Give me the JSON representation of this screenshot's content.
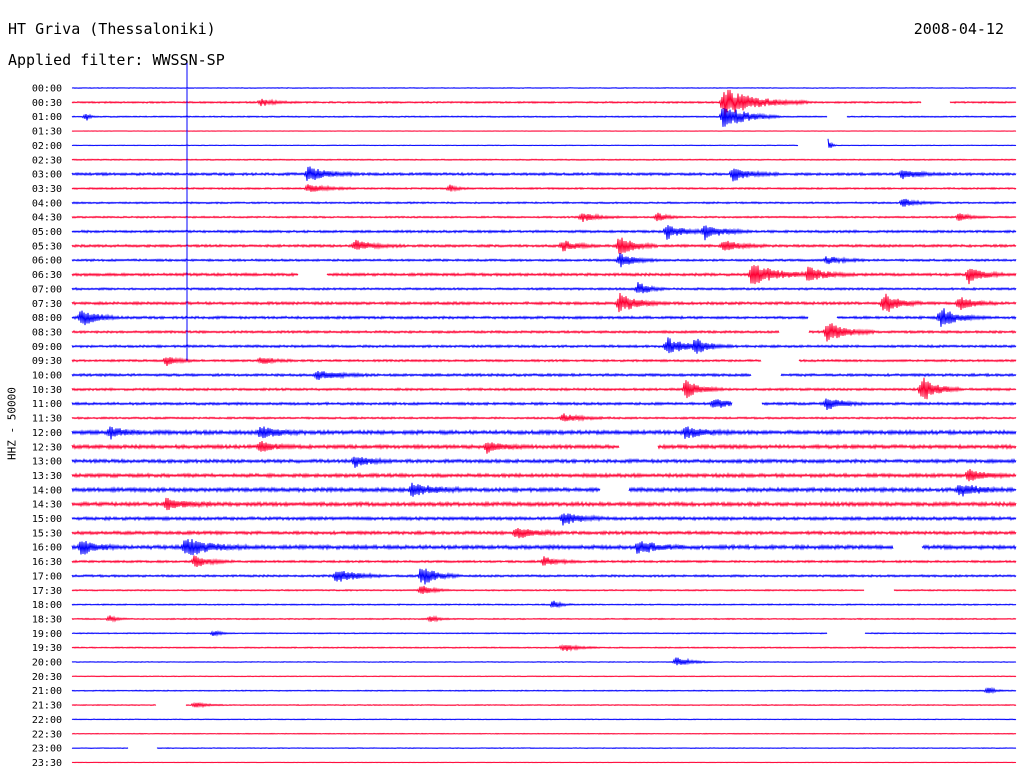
{
  "header": {
    "station": "HT Griva (Thessaloniki)",
    "date": "2008-04-12",
    "filter": "Applied filter: WWSSN-SP"
  },
  "chart_data": {
    "type": "helicorder",
    "ylabel": "HHZ - 50000",
    "colors": [
      "#0000ff",
      "#ff0033"
    ],
    "rows": [
      {
        "label": "00:00",
        "color": "#0000ff",
        "noise": 0.4,
        "events": [],
        "gaps": []
      },
      {
        "label": "00:30",
        "color": "#ff0033",
        "noise": 0.8,
        "events": [
          {
            "x": 0.69,
            "amp": 2.6,
            "dur": 0.09
          },
          {
            "x": 0.2,
            "amp": 0.6,
            "dur": 0.04
          }
        ],
        "gaps": [
          [
            0.9,
            0.93
          ]
        ]
      },
      {
        "label": "01:00",
        "color": "#0000ff",
        "noise": 0.6,
        "events": [
          {
            "x": 0.69,
            "amp": 2.3,
            "dur": 0.06
          },
          {
            "x": 0.015,
            "amp": 0.8,
            "dur": 0.01
          }
        ],
        "gaps": [
          [
            0.8,
            0.82
          ]
        ]
      },
      {
        "label": "01:30",
        "color": "#ff0033",
        "noise": 0.3,
        "events": [],
        "gaps": []
      },
      {
        "label": "02:00",
        "color": "#0000ff",
        "noise": 0.3,
        "events": [
          {
            "x": 0.8,
            "amp": 1.4,
            "dur": 0.01
          }
        ],
        "gaps": [
          [
            0.77,
            0.8
          ]
        ]
      },
      {
        "label": "02:30",
        "color": "#ff0033",
        "noise": 0.6,
        "events": [],
        "gaps": []
      },
      {
        "label": "03:00",
        "color": "#0000ff",
        "noise": 1.2,
        "events": [
          {
            "x": 0.25,
            "amp": 1.5,
            "dur": 0.05
          },
          {
            "x": 0.7,
            "amp": 1.3,
            "dur": 0.05
          },
          {
            "x": 0.88,
            "amp": 0.8,
            "dur": 0.05
          }
        ],
        "gaps": []
      },
      {
        "label": "03:30",
        "color": "#ff0033",
        "noise": 0.8,
        "events": [
          {
            "x": 0.25,
            "amp": 0.8,
            "dur": 0.05
          },
          {
            "x": 0.4,
            "amp": 0.6,
            "dur": 0.02
          }
        ],
        "gaps": []
      },
      {
        "label": "04:00",
        "color": "#0000ff",
        "noise": 0.8,
        "events": [
          {
            "x": 0.88,
            "amp": 0.7,
            "dur": 0.04
          }
        ],
        "gaps": []
      },
      {
        "label": "04:30",
        "color": "#ff0033",
        "noise": 0.8,
        "events": [
          {
            "x": 0.54,
            "amp": 0.9,
            "dur": 0.04
          },
          {
            "x": 0.62,
            "amp": 0.7,
            "dur": 0.03
          },
          {
            "x": 0.94,
            "amp": 0.8,
            "dur": 0.03
          }
        ],
        "gaps": []
      },
      {
        "label": "05:00",
        "color": "#0000ff",
        "noise": 1.1,
        "events": [
          {
            "x": 0.63,
            "amp": 1.3,
            "dur": 0.05
          },
          {
            "x": 0.67,
            "amp": 1.4,
            "dur": 0.05
          }
        ],
        "gaps": []
      },
      {
        "label": "05:30",
        "color": "#ff0033",
        "noise": 1.2,
        "events": [
          {
            "x": 0.3,
            "amp": 0.9,
            "dur": 0.05
          },
          {
            "x": 0.52,
            "amp": 0.9,
            "dur": 0.04
          },
          {
            "x": 0.58,
            "amp": 1.9,
            "dur": 0.04
          },
          {
            "x": 0.69,
            "amp": 0.9,
            "dur": 0.05
          }
        ],
        "gaps": []
      },
      {
        "label": "06:00",
        "color": "#0000ff",
        "noise": 1.0,
        "events": [
          {
            "x": 0.58,
            "amp": 1.3,
            "dur": 0.04
          },
          {
            "x": 0.8,
            "amp": 0.7,
            "dur": 0.04
          }
        ],
        "gaps": []
      },
      {
        "label": "06:30",
        "color": "#ff0033",
        "noise": 1.3,
        "events": [
          {
            "x": 0.72,
            "amp": 1.9,
            "dur": 0.07
          },
          {
            "x": 0.78,
            "amp": 1.2,
            "dur": 0.05
          },
          {
            "x": 0.95,
            "amp": 1.5,
            "dur": 0.04
          }
        ],
        "gaps": [
          [
            0.24,
            0.27
          ]
        ]
      },
      {
        "label": "07:00",
        "color": "#0000ff",
        "noise": 1.0,
        "events": [
          {
            "x": 0.6,
            "amp": 1.2,
            "dur": 0.03
          }
        ],
        "gaps": []
      },
      {
        "label": "07:30",
        "color": "#ff0033",
        "noise": 1.3,
        "events": [
          {
            "x": 0.58,
            "amp": 1.7,
            "dur": 0.05
          },
          {
            "x": 0.86,
            "amp": 2.0,
            "dur": 0.04
          },
          {
            "x": 0.94,
            "amp": 1.2,
            "dur": 0.04
          }
        ],
        "gaps": []
      },
      {
        "label": "08:00",
        "color": "#0000ff",
        "noise": 1.2,
        "events": [
          {
            "x": 0.01,
            "amp": 1.7,
            "dur": 0.04
          },
          {
            "x": 0.92,
            "amp": 1.8,
            "dur": 0.05
          }
        ],
        "gaps": [
          [
            0.78,
            0.81
          ]
        ]
      },
      {
        "label": "08:30",
        "color": "#ff0033",
        "noise": 1.1,
        "events": [
          {
            "x": 0.8,
            "amp": 1.9,
            "dur": 0.05
          }
        ],
        "gaps": [
          [
            0.75,
            0.78
          ]
        ]
      },
      {
        "label": "09:00",
        "color": "#0000ff",
        "noise": 1.1,
        "events": [
          {
            "x": 0.63,
            "amp": 1.6,
            "dur": 0.05
          },
          {
            "x": 0.66,
            "amp": 1.3,
            "dur": 0.04
          }
        ],
        "gaps": []
      },
      {
        "label": "09:30",
        "color": "#ff0033",
        "noise": 1.0,
        "events": [
          {
            "x": 0.1,
            "amp": 0.9,
            "dur": 0.03
          },
          {
            "x": 0.2,
            "amp": 0.6,
            "dur": 0.04
          }
        ],
        "gaps": [
          [
            0.73,
            0.77
          ]
        ]
      },
      {
        "label": "10:00",
        "color": "#0000ff",
        "noise": 1.2,
        "events": [
          {
            "x": 0.26,
            "amp": 0.8,
            "dur": 0.06
          }
        ],
        "gaps": [
          [
            0.72,
            0.75
          ]
        ]
      },
      {
        "label": "10:30",
        "color": "#ff0033",
        "noise": 1.1,
        "events": [
          {
            "x": 0.65,
            "amp": 1.7,
            "dur": 0.04
          },
          {
            "x": 0.9,
            "amp": 2.4,
            "dur": 0.04
          }
        ],
        "gaps": []
      },
      {
        "label": "11:00",
        "color": "#0000ff",
        "noise": 1.2,
        "events": [
          {
            "x": 0.68,
            "amp": 0.9,
            "dur": 0.04
          },
          {
            "x": 0.8,
            "amp": 1.2,
            "dur": 0.04
          }
        ],
        "gaps": [
          [
            0.7,
            0.73
          ]
        ]
      },
      {
        "label": "11:30",
        "color": "#ff0033",
        "noise": 0.9,
        "events": [
          {
            "x": 0.52,
            "amp": 0.7,
            "dur": 0.05
          }
        ],
        "gaps": []
      },
      {
        "label": "12:00",
        "color": "#0000ff",
        "noise": 1.8,
        "events": [
          {
            "x": 0.04,
            "amp": 1.0,
            "dur": 0.04
          },
          {
            "x": 0.2,
            "amp": 1.1,
            "dur": 0.05
          },
          {
            "x": 0.65,
            "amp": 1.1,
            "dur": 0.05
          }
        ],
        "gaps": []
      },
      {
        "label": "12:30",
        "color": "#ff0033",
        "noise": 1.7,
        "events": [
          {
            "x": 0.2,
            "amp": 1.0,
            "dur": 0.04
          },
          {
            "x": 0.44,
            "amp": 1.1,
            "dur": 0.04
          }
        ],
        "gaps": [
          [
            0.58,
            0.62
          ]
        ]
      },
      {
        "label": "13:00",
        "color": "#0000ff",
        "noise": 1.6,
        "events": [
          {
            "x": 0.3,
            "amp": 1.0,
            "dur": 0.04
          }
        ],
        "gaps": []
      },
      {
        "label": "13:30",
        "color": "#ff0033",
        "noise": 1.7,
        "events": [
          {
            "x": 0.95,
            "amp": 1.1,
            "dur": 0.04
          }
        ],
        "gaps": []
      },
      {
        "label": "14:00",
        "color": "#0000ff",
        "noise": 1.8,
        "events": [
          {
            "x": 0.36,
            "amp": 1.1,
            "dur": 0.06
          },
          {
            "x": 0.94,
            "amp": 1.2,
            "dur": 0.05
          }
        ],
        "gaps": [
          [
            0.56,
            0.59
          ]
        ]
      },
      {
        "label": "14:30",
        "color": "#ff0033",
        "noise": 1.8,
        "events": [
          {
            "x": 0.1,
            "amp": 1.0,
            "dur": 0.05
          }
        ],
        "gaps": []
      },
      {
        "label": "15:00",
        "color": "#0000ff",
        "noise": 1.5,
        "events": [
          {
            "x": 0.52,
            "amp": 1.1,
            "dur": 0.05
          }
        ],
        "gaps": []
      },
      {
        "label": "15:30",
        "color": "#ff0033",
        "noise": 1.5,
        "events": [
          {
            "x": 0.47,
            "amp": 1.0,
            "dur": 0.05
          }
        ],
        "gaps": []
      },
      {
        "label": "16:00",
        "color": "#0000ff",
        "noise": 1.8,
        "events": [
          {
            "x": 0.01,
            "amp": 1.4,
            "dur": 0.04
          },
          {
            "x": 0.12,
            "amp": 1.6,
            "dur": 0.07
          },
          {
            "x": 0.6,
            "amp": 1.3,
            "dur": 0.05
          }
        ],
        "gaps": [
          [
            0.87,
            0.9
          ]
        ]
      },
      {
        "label": "16:30",
        "color": "#ff0033",
        "noise": 1.0,
        "events": [
          {
            "x": 0.13,
            "amp": 1.1,
            "dur": 0.04
          },
          {
            "x": 0.5,
            "amp": 0.8,
            "dur": 0.04
          }
        ],
        "gaps": []
      },
      {
        "label": "17:00",
        "color": "#0000ff",
        "noise": 1.0,
        "events": [
          {
            "x": 0.28,
            "amp": 1.4,
            "dur": 0.05
          },
          {
            "x": 0.37,
            "amp": 1.8,
            "dur": 0.04
          }
        ],
        "gaps": []
      },
      {
        "label": "17:30",
        "color": "#ff0033",
        "noise": 0.7,
        "events": [
          {
            "x": 0.37,
            "amp": 0.9,
            "dur": 0.03
          }
        ],
        "gaps": [
          [
            0.84,
            0.87
          ]
        ]
      },
      {
        "label": "18:00",
        "color": "#0000ff",
        "noise": 0.6,
        "events": [
          {
            "x": 0.51,
            "amp": 0.7,
            "dur": 0.02
          }
        ],
        "gaps": []
      },
      {
        "label": "18:30",
        "color": "#ff0033",
        "noise": 0.6,
        "events": [
          {
            "x": 0.04,
            "amp": 0.6,
            "dur": 0.02
          },
          {
            "x": 0.38,
            "amp": 0.6,
            "dur": 0.02
          }
        ],
        "gaps": []
      },
      {
        "label": "19:00",
        "color": "#0000ff",
        "noise": 0.5,
        "events": [
          {
            "x": 0.15,
            "amp": 0.6,
            "dur": 0.02
          }
        ],
        "gaps": [
          [
            0.8,
            0.84
          ]
        ]
      },
      {
        "label": "19:30",
        "color": "#ff0033",
        "noise": 0.6,
        "events": [
          {
            "x": 0.52,
            "amp": 0.7,
            "dur": 0.04
          }
        ],
        "gaps": []
      },
      {
        "label": "20:00",
        "color": "#0000ff",
        "noise": 0.4,
        "events": [
          {
            "x": 0.64,
            "amp": 0.9,
            "dur": 0.04
          }
        ],
        "gaps": []
      },
      {
        "label": "20:30",
        "color": "#ff0033",
        "noise": 0.4,
        "events": [],
        "gaps": []
      },
      {
        "label": "21:00",
        "color": "#0000ff",
        "noise": 0.5,
        "events": [
          {
            "x": 0.97,
            "amp": 0.6,
            "dur": 0.02
          }
        ],
        "gaps": []
      },
      {
        "label": "21:30",
        "color": "#ff0033",
        "noise": 0.5,
        "events": [
          {
            "x": 0.13,
            "amp": 0.5,
            "dur": 0.03
          }
        ],
        "gaps": [
          [
            0.09,
            0.12
          ]
        ]
      },
      {
        "label": "22:00",
        "color": "#0000ff",
        "noise": 0.4,
        "events": [],
        "gaps": []
      },
      {
        "label": "22:30",
        "color": "#ff0033",
        "noise": 0.4,
        "events": [],
        "gaps": []
      },
      {
        "label": "23:00",
        "color": "#0000ff",
        "noise": 0.4,
        "events": [],
        "gaps": [
          [
            0.06,
            0.09
          ]
        ]
      },
      {
        "label": "23:30",
        "color": "#ff0033",
        "noise": 0.3,
        "events": [],
        "gaps": []
      }
    ]
  }
}
